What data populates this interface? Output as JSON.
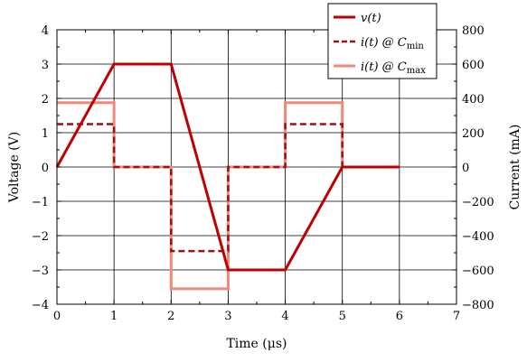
{
  "chart_data": {
    "type": "line",
    "xlabel": "Time (μs)",
    "ylabel_left": "Voltage (V)",
    "ylabel_right": "Current (mA)",
    "xlim": [
      0,
      7
    ],
    "ylim_left": [
      -4,
      4
    ],
    "ylim_right": [
      -800,
      800
    ],
    "x_ticks": [
      0,
      1,
      2,
      3,
      4,
      5,
      6,
      7
    ],
    "x_tick_labels": [
      "0",
      "1",
      "2",
      "3",
      "4",
      "5",
      "6",
      "7"
    ],
    "y_left_ticks": [
      4,
      3,
      2,
      1,
      0,
      -1,
      -2,
      -3,
      -4
    ],
    "y_left_tick_labels": [
      "4",
      "3",
      "2",
      "1",
      "0",
      "−1",
      "−2",
      "−3",
      "−4"
    ],
    "y_right_ticks": [
      800,
      600,
      400,
      200,
      0,
      -200,
      -400,
      -600,
      -800
    ],
    "y_right_tick_labels": [
      "800",
      "600",
      "400",
      "200",
      "0",
      "−200",
      "−400",
      "−600",
      "−800"
    ],
    "grid": true,
    "legend_position": "top-right",
    "series": [
      {
        "name": "v(t)",
        "legend_label": {
          "main": "v(t)",
          "sub": ""
        },
        "axis": "left",
        "color": "#c00000",
        "style": "solid",
        "x": [
          0,
          1,
          2,
          3,
          4,
          5,
          6
        ],
        "y": [
          0,
          3,
          3,
          -3,
          -3,
          0,
          0
        ]
      },
      {
        "name": "i(t) @ Cmin",
        "legend_label": {
          "main": "i(t) @ C",
          "sub": "min"
        },
        "axis": "right",
        "color": "#a01010",
        "style": "dashed",
        "x": [
          0,
          1,
          1,
          2,
          2,
          3,
          3,
          4,
          4,
          5,
          5,
          6
        ],
        "y": [
          250,
          250,
          0,
          0,
          -490,
          -490,
          0,
          0,
          250,
          250,
          0,
          0
        ]
      },
      {
        "name": "i(t) @ Cmax",
        "legend_label": {
          "main": "i(t) @ C",
          "sub": "max"
        },
        "axis": "right",
        "color": "#f08a78",
        "style": "solid",
        "x": [
          0,
          1,
          1,
          2,
          2,
          3,
          3,
          4,
          4,
          5,
          5,
          6
        ],
        "y": [
          375,
          375,
          0,
          0,
          -710,
          -710,
          0,
          0,
          375,
          375,
          0,
          0
        ]
      }
    ]
  }
}
